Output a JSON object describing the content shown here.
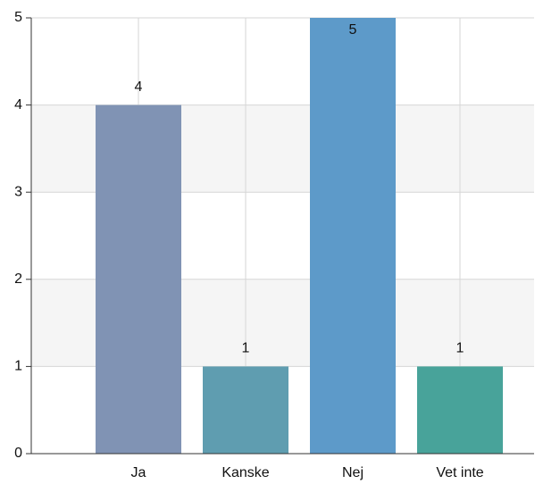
{
  "chart_data": {
    "type": "bar",
    "categories": [
      "Ja",
      "Kanske",
      "Nej",
      "Vet inte"
    ],
    "values": [
      4,
      1,
      5,
      1
    ],
    "colors": [
      "#8093b4",
      "#5f9db0",
      "#5d9ac9",
      "#48a39a"
    ],
    "ylim": [
      0,
      5
    ],
    "yticks": [
      0,
      1,
      2,
      3,
      4,
      5
    ],
    "grid": true
  }
}
